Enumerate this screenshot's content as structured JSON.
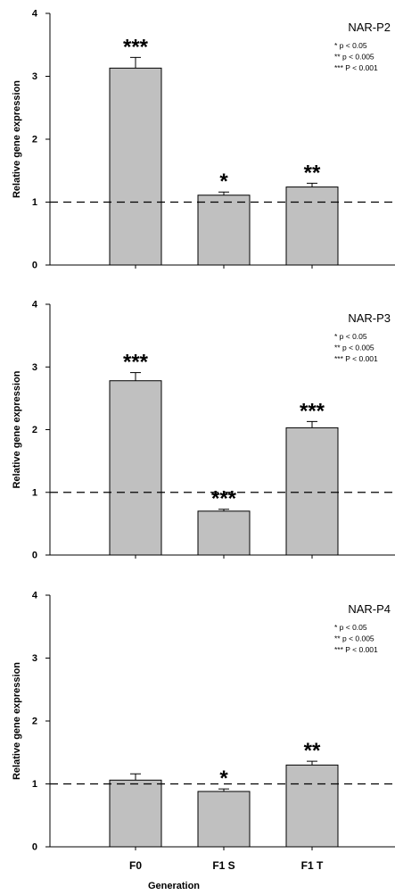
{
  "figure": {
    "xlabel": "Generation",
    "ylabel": "Relative gene expression",
    "legend_lines": [
      "* p < 0.05",
      "** p < 0.005",
      "*** P < 0.001"
    ],
    "colors": {
      "bar": "#c0c0c0",
      "stroke": "#000000"
    }
  },
  "chart_data": [
    {
      "type": "bar",
      "title": "NAR-P2",
      "categories": [
        "F0",
        "F1 S",
        "F1 T"
      ],
      "values": [
        3.13,
        1.11,
        1.24
      ],
      "errors": [
        0.17,
        0.05,
        0.06
      ],
      "significance": [
        "***",
        "*",
        "**"
      ],
      "reference_line": 1.0,
      "ylim": [
        0,
        4
      ],
      "yticks": [
        "0",
        "1",
        "2",
        "3",
        "4"
      ],
      "ylabel": "Relative gene expression",
      "xlabel": ""
    },
    {
      "type": "bar",
      "title": "NAR-P3",
      "categories": [
        "F0",
        "F1 S",
        "F1 T"
      ],
      "values": [
        2.78,
        0.7,
        2.03
      ],
      "errors": [
        0.13,
        0.03,
        0.1
      ],
      "significance": [
        "***",
        "***",
        "***"
      ],
      "reference_line": 1.0,
      "ylim": [
        0,
        4
      ],
      "yticks": [
        "0",
        "1",
        "2",
        "3",
        "4"
      ],
      "ylabel": "Relative gene expression",
      "xlabel": ""
    },
    {
      "type": "bar",
      "title": "NAR-P4",
      "categories": [
        "F0",
        "F1 S",
        "F1 T"
      ],
      "values": [
        1.06,
        0.88,
        1.3
      ],
      "errors": [
        0.1,
        0.04,
        0.06
      ],
      "significance": [
        "",
        "*",
        "**"
      ],
      "reference_line": 1.0,
      "ylim": [
        0,
        4
      ],
      "yticks": [
        "0",
        "1",
        "2",
        "3",
        "4"
      ],
      "ylabel": "Relative gene expression",
      "xlabel": "Generation"
    }
  ]
}
